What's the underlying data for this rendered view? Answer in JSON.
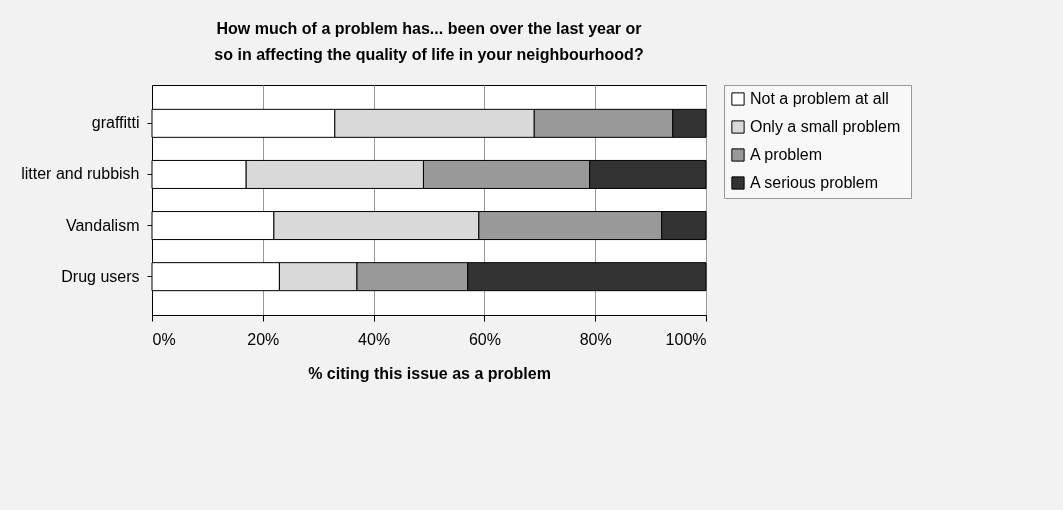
{
  "chart_data": {
    "type": "bar",
    "orientation": "horizontal",
    "stacked": true,
    "title": "How much of a problem has... been over the last year or so in affecting the quality of life in your neighbourhood?",
    "xlabel": "% citing this issue as a problem",
    "categories": [
      "graffitti",
      "litter and rubbish",
      "Vandalism",
      "Drug users"
    ],
    "series": [
      {
        "name": "Not a problem at all",
        "color": "#ffffff",
        "values": [
          33,
          17,
          22,
          23
        ]
      },
      {
        "name": "Only  a small problem",
        "color": "#d9d9d9",
        "values": [
          36,
          32,
          37,
          14
        ]
      },
      {
        "name": "A problem",
        "color": "#999999",
        "values": [
          25,
          30,
          33,
          20
        ]
      },
      {
        "name": "A serious problem",
        "color": "#333333",
        "values": [
          6,
          21,
          8,
          43
        ]
      }
    ],
    "xlim": [
      0,
      100
    ],
    "xticks": [
      {
        "value": 0,
        "label": "0%"
      },
      {
        "value": 20,
        "label": "20%"
      },
      {
        "value": 40,
        "label": "40%"
      },
      {
        "value": 60,
        "label": "60%"
      },
      {
        "value": 80,
        "label": "80%"
      },
      {
        "value": 100,
        "label": "100%"
      }
    ],
    "grid": "x",
    "legend": "right"
  }
}
